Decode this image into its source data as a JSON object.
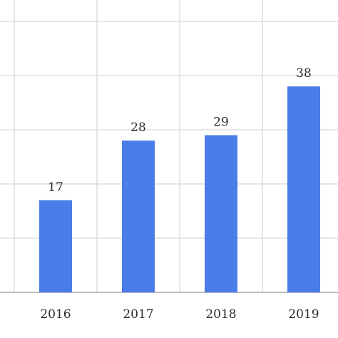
{
  "chart_data": {
    "type": "bar",
    "categories": [
      "2016",
      "2017",
      "2018",
      "2019"
    ],
    "values": [
      17,
      28,
      29,
      38
    ],
    "data_labels": [
      "17",
      "28",
      "29",
      "38"
    ],
    "ylim": [
      0,
      50
    ],
    "grid": true,
    "bar_color": "#4a7de8",
    "grid_color": "#dddddd",
    "axis_color": "#bbbbbb"
  }
}
